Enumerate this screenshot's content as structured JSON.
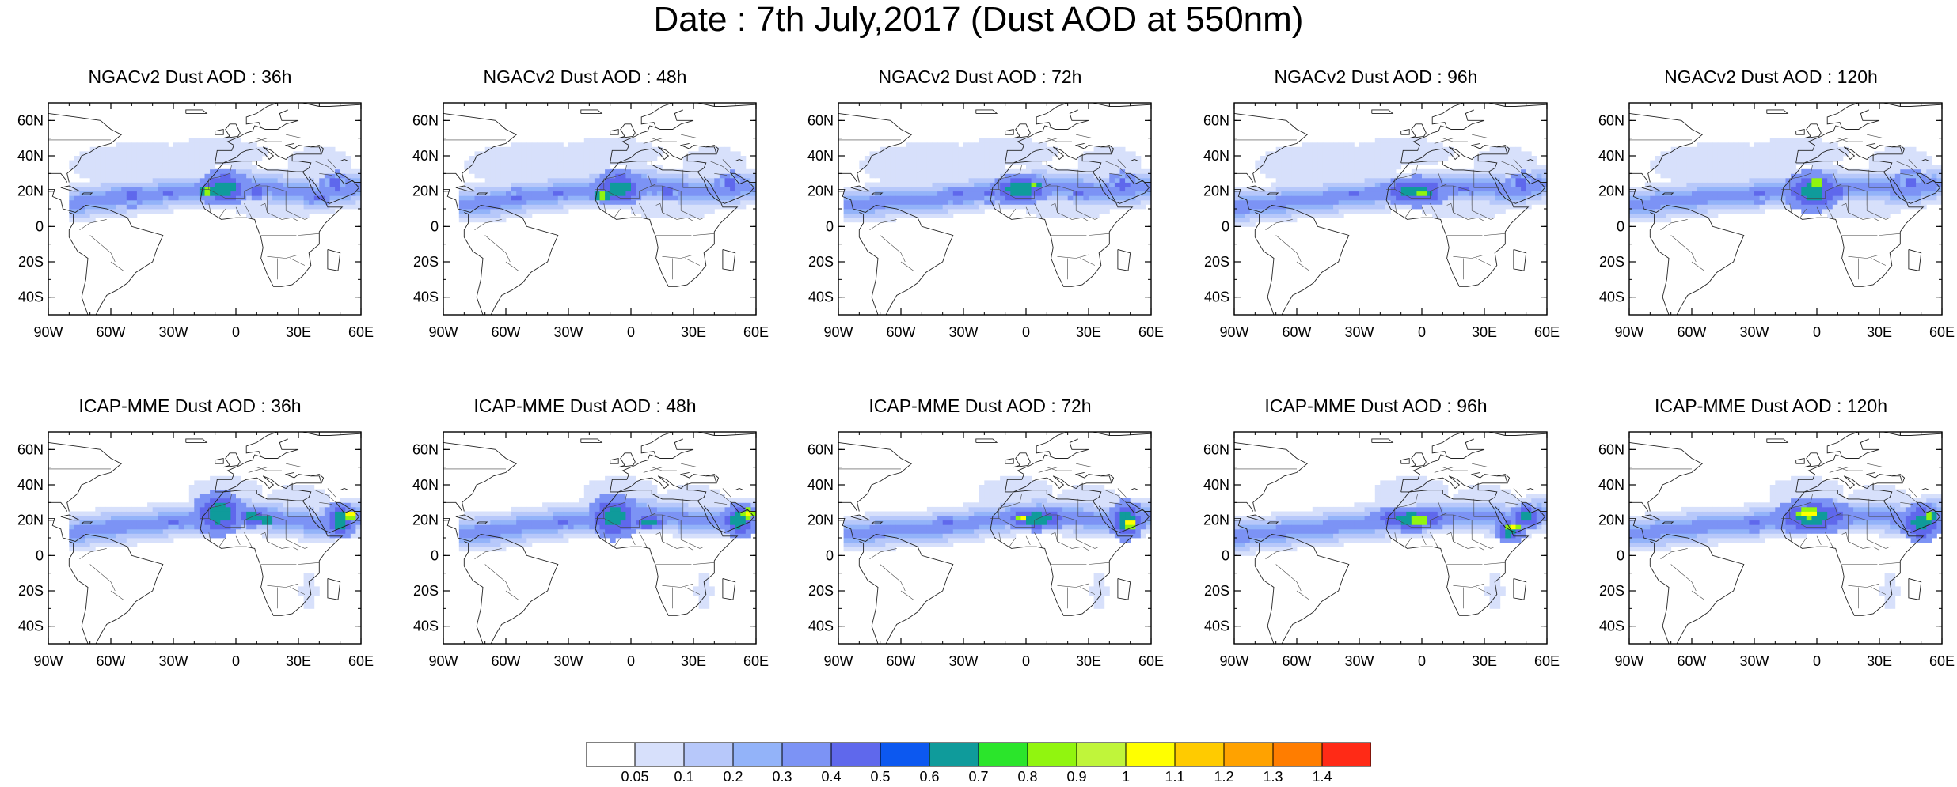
{
  "title": "Date : 7th July,2017 (Dust AOD at 550nm)",
  "axes": {
    "lon_ticks": [
      {
        "value": -90,
        "label": "90W"
      },
      {
        "value": -60,
        "label": "60W"
      },
      {
        "value": -30,
        "label": "30W"
      },
      {
        "value": 0,
        "label": "0"
      },
      {
        "value": 30,
        "label": "30E"
      },
      {
        "value": 60,
        "label": "60E"
      }
    ],
    "lat_ticks": [
      {
        "value": 60,
        "label": "60N"
      },
      {
        "value": 40,
        "label": "40N"
      },
      {
        "value": 20,
        "label": "20N"
      },
      {
        "value": 0,
        "label": "0"
      },
      {
        "value": -20,
        "label": "20S"
      },
      {
        "value": -40,
        "label": "40S"
      }
    ],
    "lon_range": [
      -90,
      60
    ],
    "lat_range": [
      -50,
      70
    ]
  },
  "panels": [
    {
      "title": "NGACv2 Dust AOD : 36h",
      "model": "ngac",
      "hour": 36
    },
    {
      "title": "NGACv2 Dust AOD : 48h",
      "model": "ngac",
      "hour": 48
    },
    {
      "title": "NGACv2 Dust AOD : 72h",
      "model": "ngac",
      "hour": 72
    },
    {
      "title": "NGACv2 Dust AOD : 96h",
      "model": "ngac",
      "hour": 96
    },
    {
      "title": "NGACv2 Dust AOD : 120h",
      "model": "ngac",
      "hour": 120
    },
    {
      "title": "ICAP-MME Dust AOD : 36h",
      "model": "icap",
      "hour": 36
    },
    {
      "title": "ICAP-MME Dust AOD : 48h",
      "model": "icap",
      "hour": 48
    },
    {
      "title": "ICAP-MME Dust AOD : 72h",
      "model": "icap",
      "hour": 72
    },
    {
      "title": "ICAP-MME Dust AOD : 96h",
      "model": "icap",
      "hour": 96
    },
    {
      "title": "ICAP-MME Dust AOD : 120h",
      "model": "icap",
      "hour": 120
    }
  ],
  "colorbar": {
    "colors": [
      "#ffffff",
      "#d7e0fb",
      "#b7c8fa",
      "#93b3f9",
      "#7c93f5",
      "#5f68ec",
      "#0c58f0",
      "#0f9b9b",
      "#2be52b",
      "#91f50f",
      "#c0f53a",
      "#ffff00",
      "#ffcb00",
      "#ffa200",
      "#ff7d00",
      "#ff2a16"
    ],
    "labels": [
      "0.05",
      "0.1",
      "0.2",
      "0.3",
      "0.4",
      "0.5",
      "0.6",
      "0.7",
      "0.8",
      "0.9",
      "1",
      "1.1",
      "1.2",
      "1.3",
      "1.4"
    ]
  }
}
